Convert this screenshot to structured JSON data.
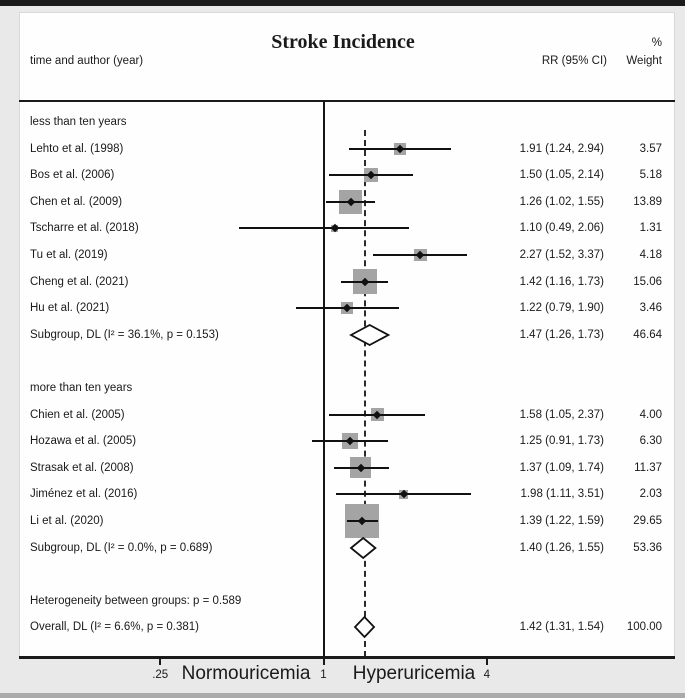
{
  "figure": {
    "title": "Stroke Incidence",
    "percent_symbol": "%",
    "col_left": "time and author (year)",
    "col_rr": "RR (95% CI)",
    "col_weight": "Weight"
  },
  "axis": {
    "scale": "log",
    "ticks": [
      {
        "label": ".25",
        "value": 0.25
      },
      {
        "label": "1",
        "value": 1
      },
      {
        "label": "4",
        "value": 4
      }
    ],
    "left_region_label": "Normouricemia",
    "right_region_label": "Hyperuricemia"
  },
  "colors": {
    "square": "#a4a4a4",
    "line": "#111111",
    "background": "#e9e9e9",
    "panel": "#fefefe"
  },
  "chart_data": {
    "type": "forest",
    "title": "Stroke Incidence",
    "x_scale": "log",
    "x_range": [
      0.25,
      4
    ],
    "null_line": 1.0,
    "overall_estimate_line": 1.42,
    "effect_label": "RR (95% CI)",
    "rows": [
      {
        "kind": "group-header",
        "label": "less than ten years"
      },
      {
        "kind": "study",
        "label": "Lehto et al. (1998)",
        "est": 1.91,
        "lo": 1.24,
        "hi": 2.94,
        "weight": 3.57,
        "rr_text": "1.91 (1.24, 2.94)",
        "weight_text": "3.57"
      },
      {
        "kind": "study",
        "label": "Bos et al. (2006)",
        "est": 1.5,
        "lo": 1.05,
        "hi": 2.14,
        "weight": 5.18,
        "rr_text": "1.50 (1.05, 2.14)",
        "weight_text": "5.18"
      },
      {
        "kind": "study",
        "label": "Chen et al. (2009)",
        "est": 1.26,
        "lo": 1.02,
        "hi": 1.55,
        "weight": 13.89,
        "rr_text": "1.26 (1.02, 1.55)",
        "weight_text": "13.89"
      },
      {
        "kind": "study",
        "label": "Tscharre et al. (2018)",
        "est": 1.1,
        "lo": 0.49,
        "hi": 2.06,
        "weight": 1.31,
        "rr_text": "1.10 (0.49, 2.06)",
        "weight_text": "1.31"
      },
      {
        "kind": "study",
        "label": "Tu et al. (2019)",
        "est": 2.27,
        "lo": 1.52,
        "hi": 3.37,
        "weight": 4.18,
        "rr_text": "2.27 (1.52, 3.37)",
        "weight_text": "4.18"
      },
      {
        "kind": "study",
        "label": "Cheng et al. (2021)",
        "est": 1.42,
        "lo": 1.16,
        "hi": 1.73,
        "weight": 15.06,
        "rr_text": "1.42 (1.16, 1.73)",
        "weight_text": "15.06"
      },
      {
        "kind": "study",
        "label": "Hu et al. (2021)",
        "est": 1.22,
        "lo": 0.79,
        "hi": 1.9,
        "weight": 3.46,
        "rr_text": "1.22 (0.79, 1.90)",
        "weight_text": "3.46"
      },
      {
        "kind": "subgroup",
        "label": "Subgroup, DL (I² = 36.1%, p = 0.153)",
        "est": 1.47,
        "lo": 1.26,
        "hi": 1.73,
        "rr_text": "1.47 (1.26, 1.73)",
        "weight_text": "46.64"
      },
      {
        "kind": "gap"
      },
      {
        "kind": "group-header",
        "label": "more than ten years"
      },
      {
        "kind": "study",
        "label": "Chien et al. (2005)",
        "est": 1.58,
        "lo": 1.05,
        "hi": 2.37,
        "weight": 4.0,
        "rr_text": "1.58 (1.05, 2.37)",
        "weight_text": "4.00"
      },
      {
        "kind": "study",
        "label": "Hozawa et al. (2005)",
        "est": 1.25,
        "lo": 0.91,
        "hi": 1.73,
        "weight": 6.3,
        "rr_text": "1.25 (0.91, 1.73)",
        "weight_text": "6.30"
      },
      {
        "kind": "study",
        "label": "Strasak et al. (2008)",
        "est": 1.37,
        "lo": 1.09,
        "hi": 1.74,
        "weight": 11.37,
        "rr_text": "1.37 (1.09, 1.74)",
        "weight_text": "11.37"
      },
      {
        "kind": "study",
        "label": "Jiménez et al. (2016)",
        "est": 1.98,
        "lo": 1.11,
        "hi": 3.51,
        "weight": 2.03,
        "rr_text": "1.98 (1.11, 3.51)",
        "weight_text": "2.03"
      },
      {
        "kind": "study",
        "label": "Li et al. (2020)",
        "est": 1.39,
        "lo": 1.22,
        "hi": 1.59,
        "weight": 29.65,
        "rr_text": "1.39 (1.22, 1.59)",
        "weight_text": "29.65"
      },
      {
        "kind": "subgroup",
        "label": "Subgroup, DL (I² = 0.0%, p = 0.689)",
        "est": 1.4,
        "lo": 1.26,
        "hi": 1.55,
        "rr_text": "1.40 (1.26, 1.55)",
        "weight_text": "53.36"
      },
      {
        "kind": "gap"
      },
      {
        "kind": "note",
        "label": "Heterogeneity between groups: p = 0.589"
      },
      {
        "kind": "overall",
        "label": "Overall, DL (I² = 6.6%, p = 0.381)",
        "est": 1.42,
        "lo": 1.31,
        "hi": 1.54,
        "rr_text": "1.42 (1.31, 1.54)",
        "weight_text": "100.00"
      }
    ]
  }
}
